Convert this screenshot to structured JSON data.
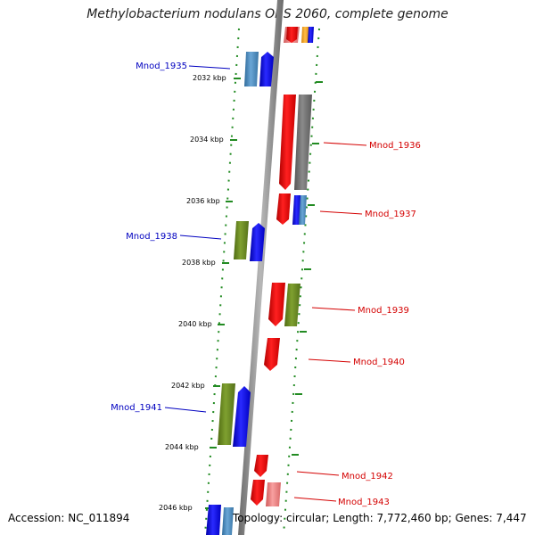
{
  "title": "Methylobacterium nodulans ORS 2060, complete genome",
  "footer": {
    "accession": "Accession: NC_011894",
    "topology": "Topology: circular; Length: 7,772,460 bp; Genes: 7,447"
  },
  "colors": {
    "backbone": "#8c8c8c",
    "ticks": "#228b22",
    "forward_label": "#0000c0",
    "reverse_label": "#d40000",
    "red": "#ee1111",
    "blue": "#1010ee",
    "gray": "#7a7a7a",
    "olive": "#6b8e23",
    "steel": "#4a86b8",
    "pink": "#f08080",
    "orange": "#f5a623"
  },
  "scale_labels": [
    "2032 kbp",
    "2034 kbp",
    "2036 kbp",
    "2038 kbp",
    "2040 kbp",
    "2042 kbp",
    "2044 kbp",
    "2046 kbp"
  ],
  "gene_labels": {
    "forward": [
      "Mnod_1935",
      "Mnod_1938",
      "Mnod_1941"
    ],
    "reverse": [
      "Mnod_1936",
      "Mnod_1937",
      "Mnod_1939",
      "Mnod_1940",
      "Mnod_1942",
      "Mnod_1943"
    ]
  }
}
